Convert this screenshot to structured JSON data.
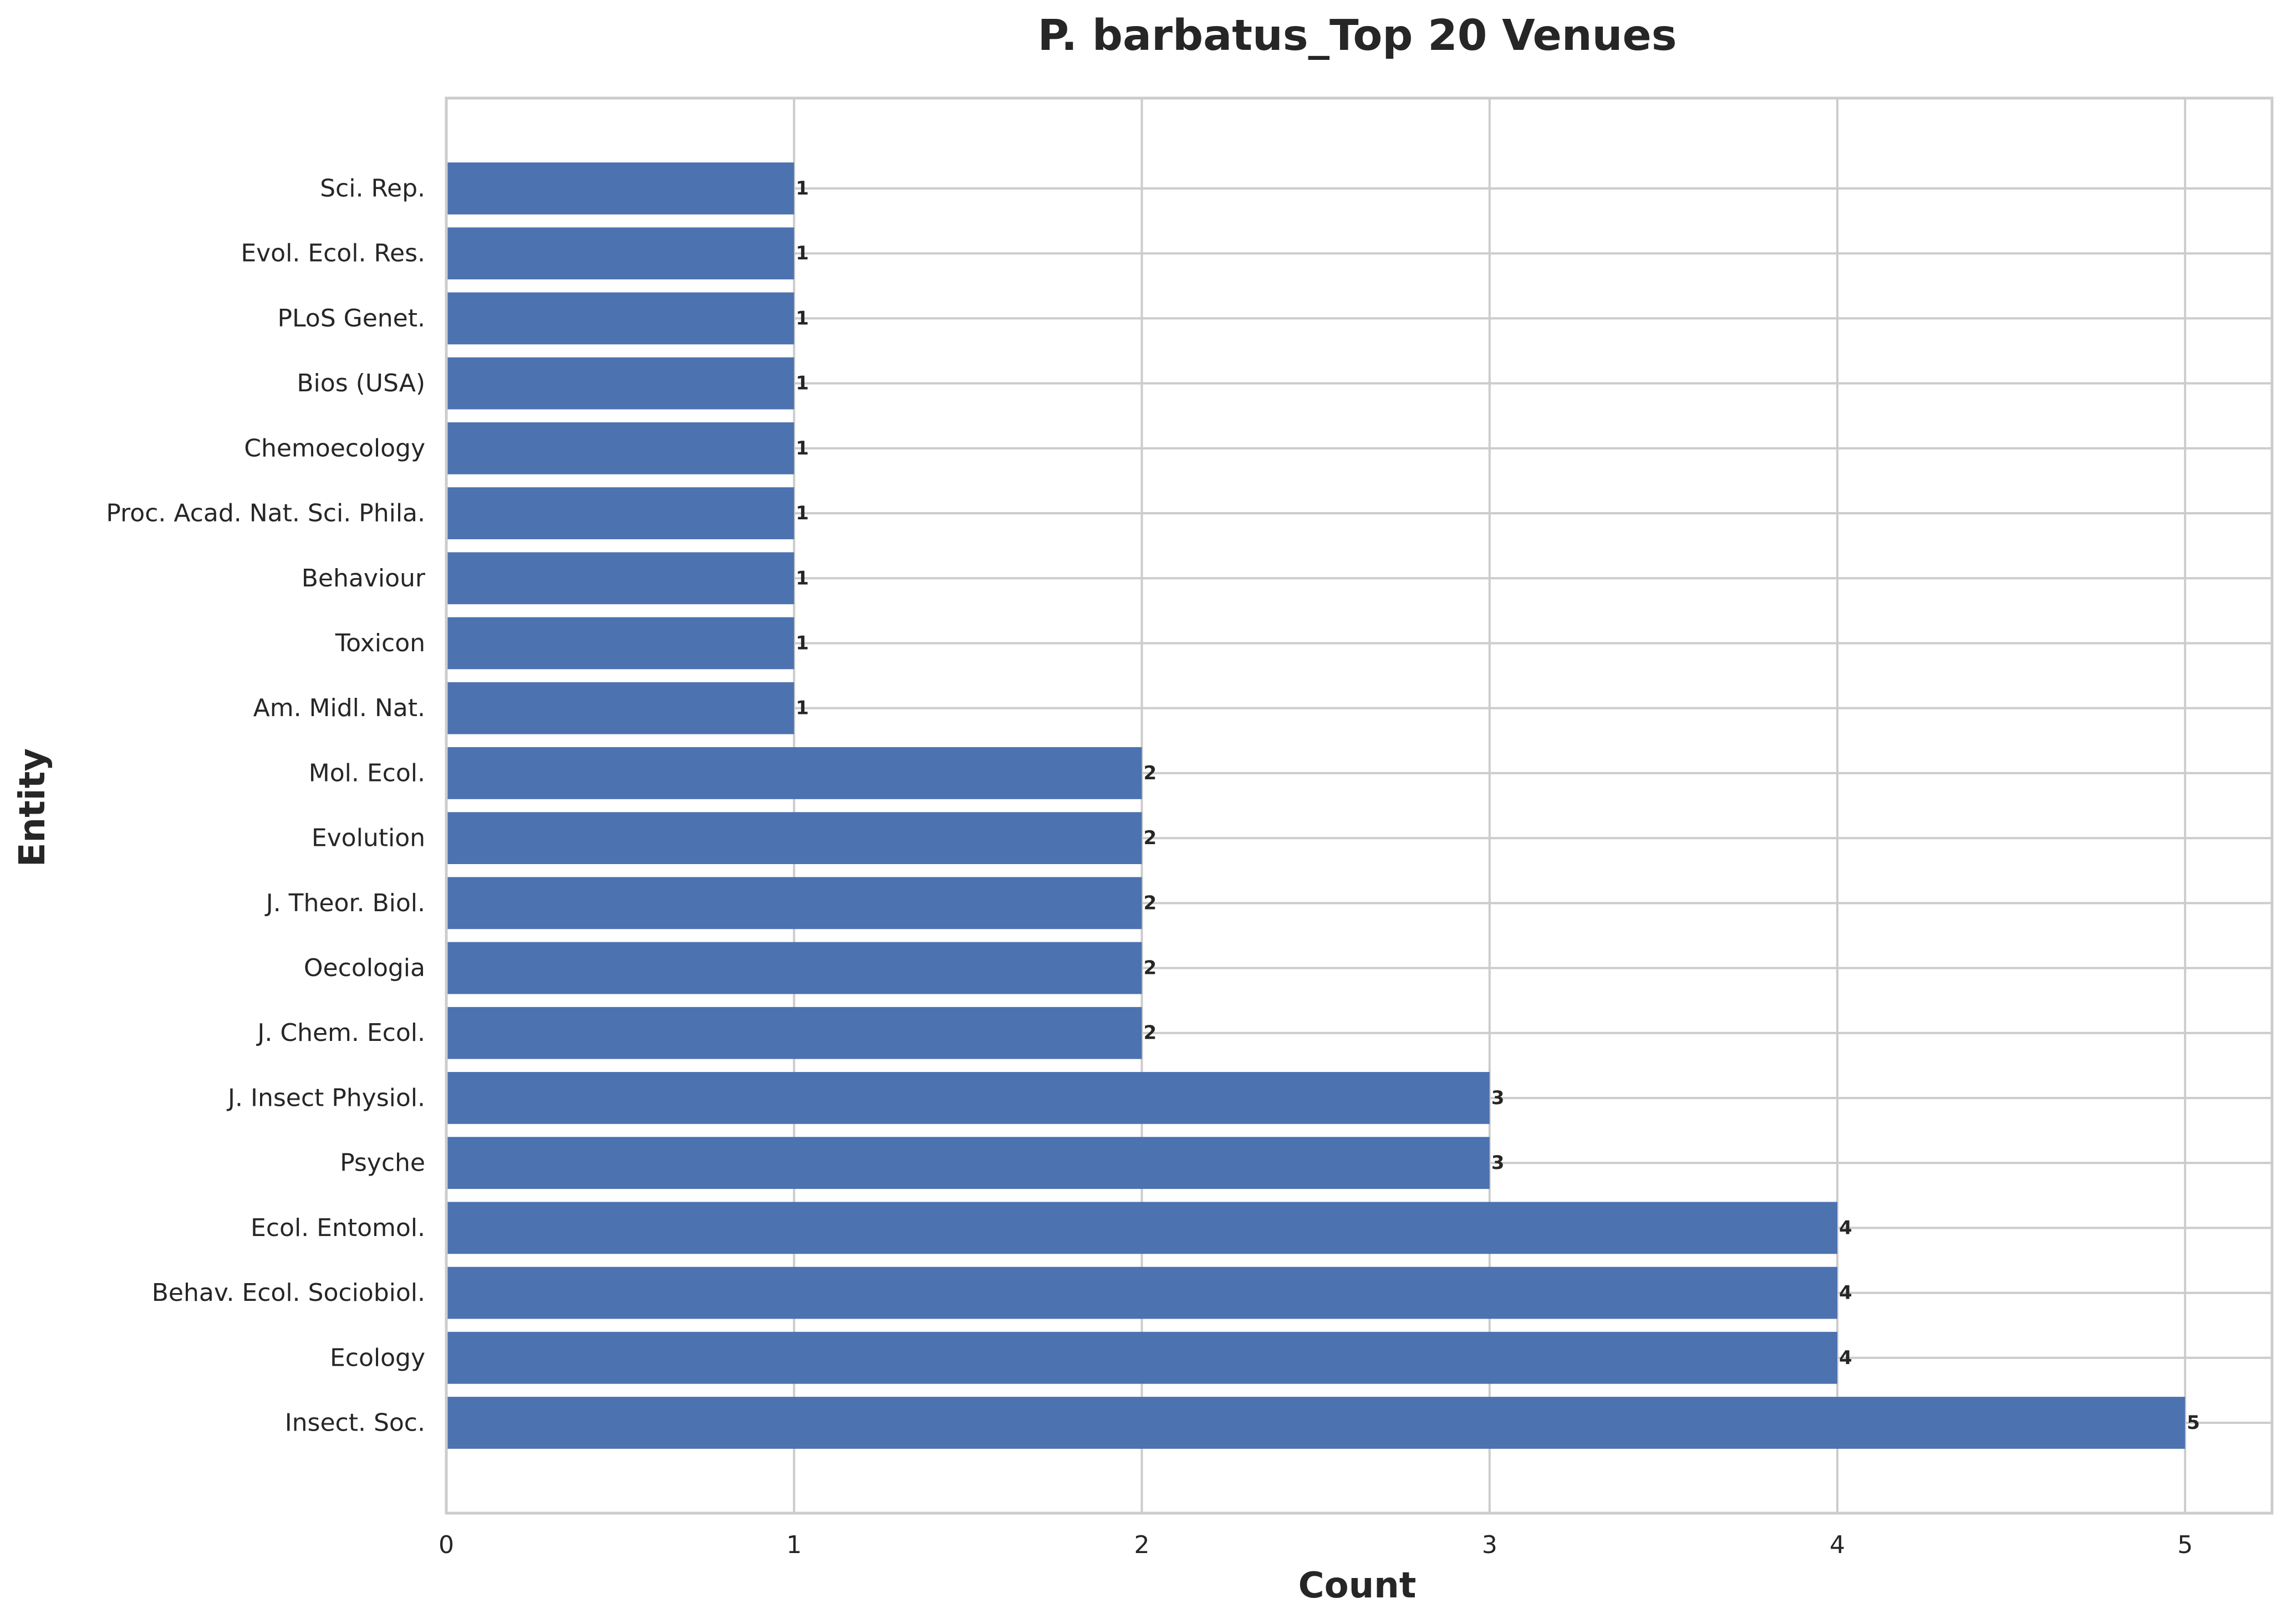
{
  "chart_data": {
    "type": "bar",
    "orientation": "horizontal",
    "title": "P. barbatus_Top 20 Venues",
    "xlabel": "Count",
    "ylabel": "Entity",
    "categories": [
      "Insect. Soc.",
      "Ecology",
      "Behav. Ecol. Sociobiol.",
      "Ecol. Entomol.",
      "Psyche",
      "J. Insect Physiol.",
      "J. Chem. Ecol.",
      "Oecologia",
      "J. Theor. Biol.",
      "Evolution",
      "Mol. Ecol.",
      "Am. Midl. Nat.",
      "Toxicon",
      "Behaviour",
      "Proc. Acad. Nat. Sci. Phila.",
      "Chemoecology",
      "Bios (USA)",
      "PLoS Genet.",
      "Evol. Ecol. Res.",
      "Sci. Rep."
    ],
    "values": [
      5,
      4,
      4,
      4,
      3,
      3,
      2,
      2,
      2,
      2,
      2,
      1,
      1,
      1,
      1,
      1,
      1,
      1,
      1,
      1
    ],
    "xlim": [
      0,
      5.25
    ],
    "xticks": [
      "0",
      "1",
      "2",
      "3",
      "4",
      "5"
    ],
    "grid": true,
    "bar_color": "#4c72b0",
    "data_labels": true
  }
}
